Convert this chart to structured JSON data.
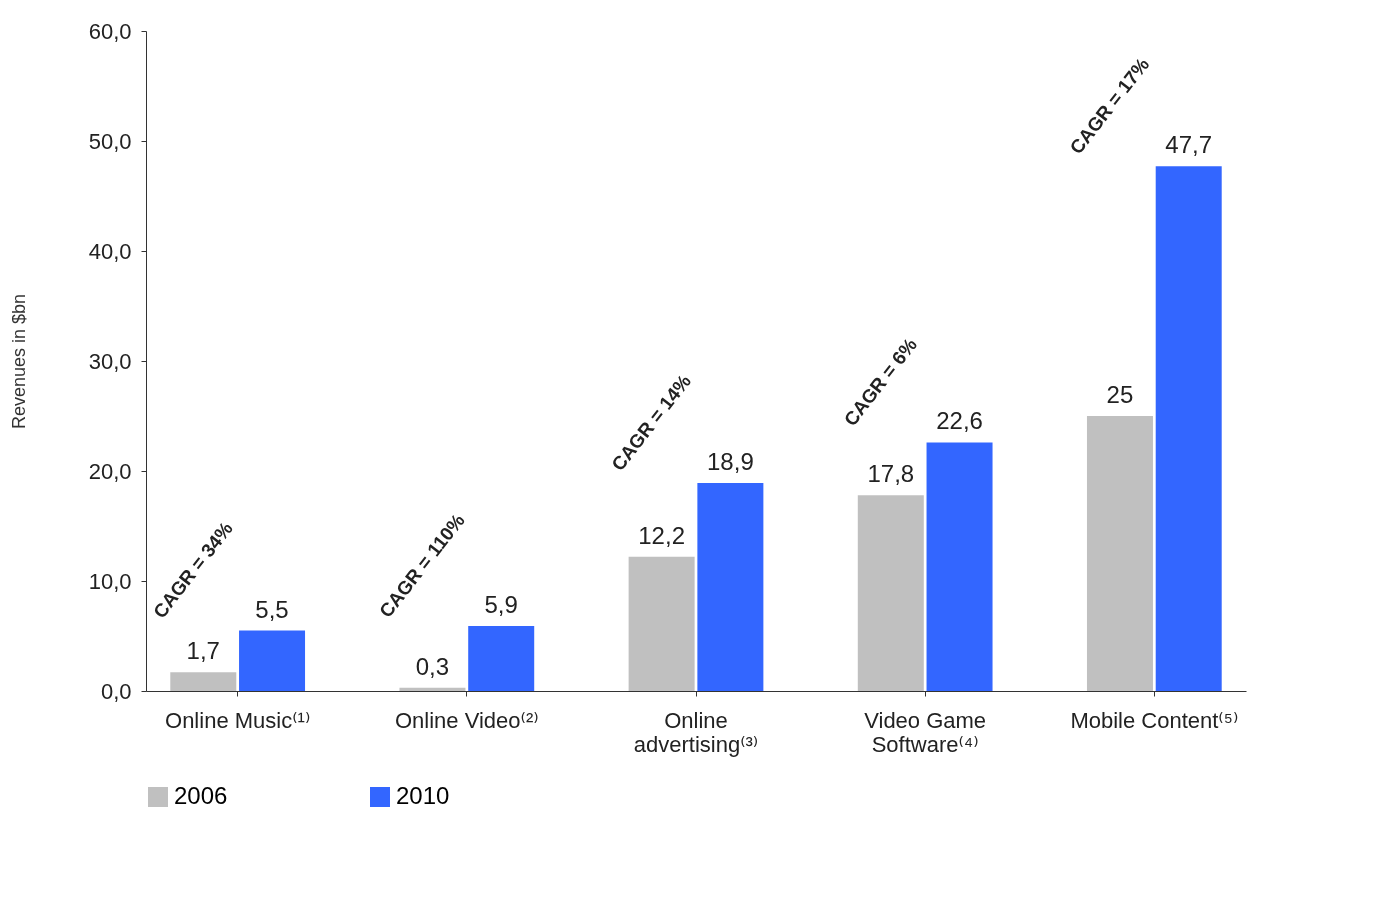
{
  "chart_data": {
    "type": "bar",
    "ylabel": "Revenues in $bn",
    "categories": [
      "Online Music⁽¹⁾",
      "Online Video⁽²⁾",
      "Online advertising⁽³⁾",
      "Video Game Software⁽⁴⁾",
      "Mobile Content⁽⁵⁾"
    ],
    "series": [
      {
        "name": "2006",
        "color": "#c0c0c0",
        "values": [
          1.7,
          0.3,
          12.2,
          17.8,
          25
        ],
        "value_labels": [
          "1,7",
          "0,3",
          "12,2",
          "17,8",
          "25"
        ]
      },
      {
        "name": "2010",
        "color": "#3366ff",
        "values": [
          5.5,
          5.9,
          18.9,
          22.6,
          47.7
        ],
        "value_labels": [
          "5,5",
          "5,9",
          "18,9",
          "22,6",
          "47,7"
        ]
      }
    ],
    "ylim": [
      0,
      60
    ],
    "yticks": [
      {
        "value": 0,
        "label": "0,0"
      },
      {
        "value": 10,
        "label": "10,0"
      },
      {
        "value": 20,
        "label": "20,0"
      },
      {
        "value": 30,
        "label": "30,0"
      },
      {
        "value": 40,
        "label": "40,0"
      },
      {
        "value": 50,
        "label": "50,0"
      },
      {
        "value": 60,
        "label": "60,0"
      }
    ],
    "annotations": [
      "CAGR = 34%",
      "CAGR = 110%",
      "CAGR = 14%",
      "CAGR = 6%",
      "CAGR = 17%"
    ],
    "grid": false,
    "legend": "bottom"
  }
}
